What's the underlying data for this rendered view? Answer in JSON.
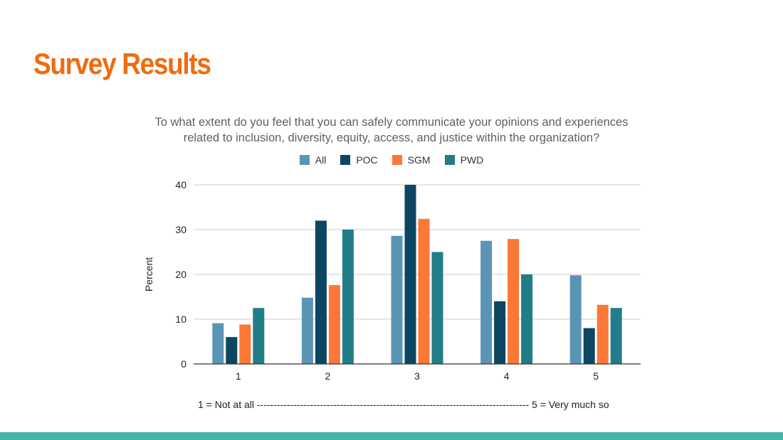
{
  "slide": {
    "title": "Survey Results",
    "scale_note": "1 = Not at all ---------------------------------------------------------------------------------- 5 = Very much so",
    "footer_color": "#45b3a8",
    "title_color": "#ef6c0f"
  },
  "chart_data": {
    "type": "bar",
    "title_line1": "To what extent do you feel that you can safely communicate your opinions and experiences",
    "title_line2": "related to inclusion, diversity, equity, access, and justice within the organization?",
    "xlabel": "",
    "ylabel": "Percent",
    "ylim": [
      0,
      40
    ],
    "yticks": [
      0,
      10,
      20,
      30,
      40
    ],
    "grid": true,
    "legend_position": "top",
    "categories": [
      "1",
      "2",
      "3",
      "4",
      "5"
    ],
    "series": [
      {
        "name": "All",
        "color": "#5b95b5",
        "values": [
          9.1,
          14.8,
          28.6,
          27.5,
          19.8
        ]
      },
      {
        "name": "POC",
        "color": "#0c4663",
        "values": [
          6.0,
          32.0,
          40.0,
          14.0,
          8.0
        ]
      },
      {
        "name": "SGM",
        "color": "#fb7837",
        "values": [
          8.8,
          17.6,
          32.4,
          27.9,
          13.2
        ]
      },
      {
        "name": "PWD",
        "color": "#227d88",
        "values": [
          12.5,
          30.0,
          25.0,
          20.0,
          12.5
        ]
      }
    ]
  }
}
